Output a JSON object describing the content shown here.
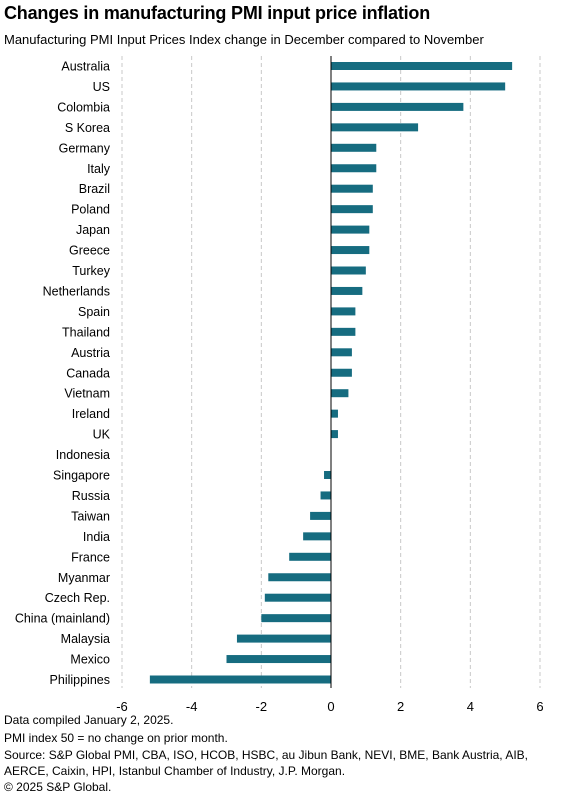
{
  "title": "Changes in manufacturing PMI input price inflation",
  "subtitle": "Manufacturing PMI Input Prices Index change in December compared to November",
  "notes": {
    "compiled": "Data compiled January 2, 2025.",
    "pmi": "PMI index 50 = no change on prior month.",
    "source_line1": "Source: S&P Global PMI, CBA, ISO, HCOB, HSBC, au Jibun Bank, NEVI, BME, Bank Austria, AIB,",
    "source_line2": "AERCE, Caixin, HPI, Istanbul Chamber of Industry, J.P. Morgan.",
    "copyright": "© 2025 S&P Global."
  },
  "chart_data": {
    "type": "bar",
    "orientation": "horizontal",
    "categories": [
      "Australia",
      "US",
      "Colombia",
      "S Korea",
      "Germany",
      "Italy",
      "Brazil",
      "Poland",
      "Japan",
      "Greece",
      "Turkey",
      "Netherlands",
      "Spain",
      "Thailand",
      "Austria",
      "Canada",
      "Vietnam",
      "Ireland",
      "UK",
      "Indonesia",
      "Singapore",
      "Russia",
      "Taiwan",
      "India",
      "France",
      "Myanmar",
      "Czech Rep.",
      "China (mainland)",
      "Malaysia",
      "Mexico",
      "Philippines"
    ],
    "values": [
      5.2,
      5.0,
      3.8,
      2.5,
      1.3,
      1.3,
      1.2,
      1.2,
      1.1,
      1.1,
      1.0,
      0.9,
      0.7,
      0.7,
      0.6,
      0.6,
      0.5,
      0.2,
      0.2,
      0.0,
      -0.2,
      -0.3,
      -0.6,
      -0.8,
      -1.2,
      -1.8,
      -1.9,
      -2.0,
      -2.7,
      -3.0,
      -5.2
    ],
    "xlim": [
      -6,
      6
    ],
    "xticks": [
      -6,
      -4,
      -2,
      0,
      2,
      4,
      6
    ],
    "grid": "vertical dashed",
    "colors": {
      "bar": "#166c80",
      "grid": "#c8c8c8",
      "axis": "#000000"
    }
  }
}
